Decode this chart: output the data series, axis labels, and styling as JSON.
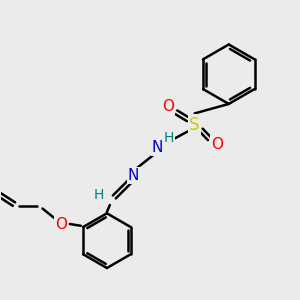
{
  "background_color": "#ebebeb",
  "bond_color": "#000000",
  "bond_width": 1.8,
  "atom_colors": {
    "N": "#0000cc",
    "O": "#ff0000",
    "S": "#cccc00",
    "H_label": "#008080",
    "C": "#000000"
  },
  "figsize": [
    3.0,
    3.0
  ],
  "dpi": 100
}
